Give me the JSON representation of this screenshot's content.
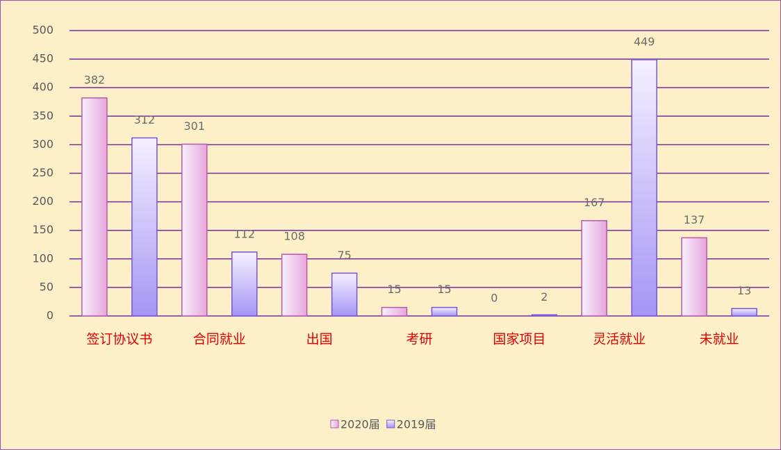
{
  "chart_data": {
    "type": "bar",
    "categories": [
      "签订协议书",
      "合同就业",
      "出国",
      "考研",
      "国家项目",
      "灵活就业",
      "未就业"
    ],
    "series": [
      {
        "name": "2020届",
        "color": "#e8a6dc",
        "values": [
          382,
          301,
          108,
          15,
          0,
          167,
          137
        ]
      },
      {
        "name": "2019届",
        "color": "#a595f5",
        "values": [
          312,
          112,
          75,
          15,
          2,
          449,
          13
        ]
      }
    ],
    "ylim": [
      0,
      500
    ],
    "yticks": [
      0,
      50,
      100,
      150,
      200,
      250,
      300,
      350,
      400,
      450,
      500
    ],
    "grid": true,
    "legend": "bottom",
    "data_labels": true
  }
}
